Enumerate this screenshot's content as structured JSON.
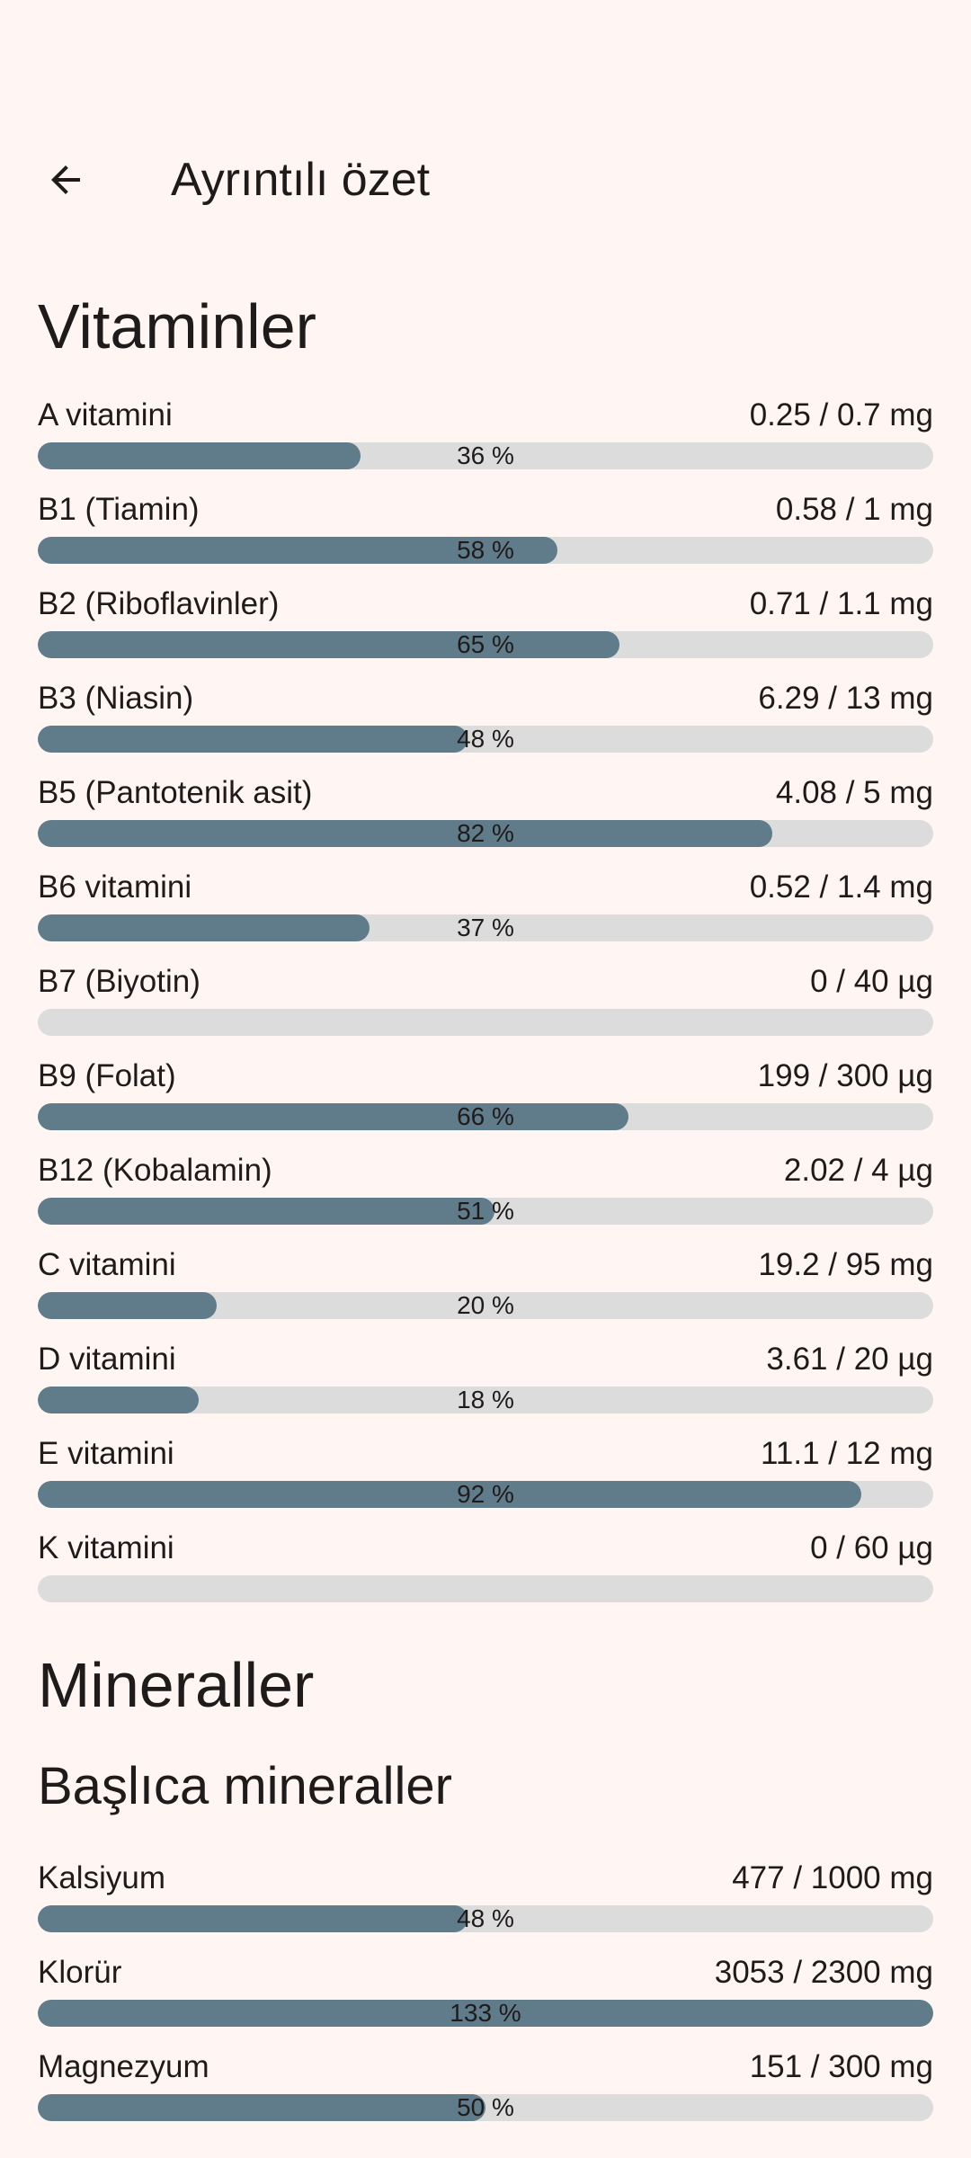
{
  "header": {
    "title": "Ayrıntılı özet",
    "back_icon": "arrow-left-icon"
  },
  "vitamins": {
    "title": "Vitaminler",
    "items": [
      {
        "name": "A vitamini",
        "amount": "0.25 / 0.7 mg",
        "percent": 36,
        "percent_label": "36 %"
      },
      {
        "name": "B1 (Tiamin)",
        "amount": "0.58 / 1 mg",
        "percent": 58,
        "percent_label": "58 %"
      },
      {
        "name": "B2 (Riboflavinler)",
        "amount": "0.71 / 1.1 mg",
        "percent": 65,
        "percent_label": "65 %"
      },
      {
        "name": "B3 (Niasin)",
        "amount": "6.29 / 13 mg",
        "percent": 48,
        "percent_label": "48 %"
      },
      {
        "name": "B5 (Pantotenik asit)",
        "amount": "4.08 / 5 mg",
        "percent": 82,
        "percent_label": "82 %"
      },
      {
        "name": "B6 vitamini",
        "amount": "0.52 / 1.4 mg",
        "percent": 37,
        "percent_label": "37 %"
      },
      {
        "name": "B7 (Biyotin)",
        "amount": "0 / 40 µg",
        "percent": 0,
        "percent_label": ""
      },
      {
        "name": "B9 (Folat)",
        "amount": "199 / 300 µg",
        "percent": 66,
        "percent_label": "66 %"
      },
      {
        "name": "B12 (Kobalamin)",
        "amount": "2.02 / 4 µg",
        "percent": 51,
        "percent_label": "51 %"
      },
      {
        "name": "C vitamini",
        "amount": "19.2 / 95 mg",
        "percent": 20,
        "percent_label": "20 %"
      },
      {
        "name": "D vitamini",
        "amount": "3.61 / 20 µg",
        "percent": 18,
        "percent_label": "18 %"
      },
      {
        "name": "E vitamini",
        "amount": "11.1 / 12 mg",
        "percent": 92,
        "percent_label": "92 %"
      },
      {
        "name": "K vitamini",
        "amount": "0 / 60 µg",
        "percent": 0,
        "percent_label": ""
      }
    ]
  },
  "minerals": {
    "title": "Mineraller",
    "major": {
      "title": "Başlıca mineraller",
      "items": [
        {
          "name": "Kalsiyum",
          "amount": "477 / 1000 mg",
          "percent": 48,
          "percent_label": "48 %"
        },
        {
          "name": "Klorür",
          "amount": "3053 / 2300 mg",
          "percent": 133,
          "percent_label": "133 %"
        },
        {
          "name": "Magnezyum",
          "amount": "151 / 300 mg",
          "percent": 50,
          "percent_label": "50 %"
        }
      ]
    }
  },
  "colors": {
    "background": "#fff6f4",
    "bar_fill": "#607b8a",
    "bar_track": "#dcdcdc",
    "text": "#1f1b1b"
  }
}
